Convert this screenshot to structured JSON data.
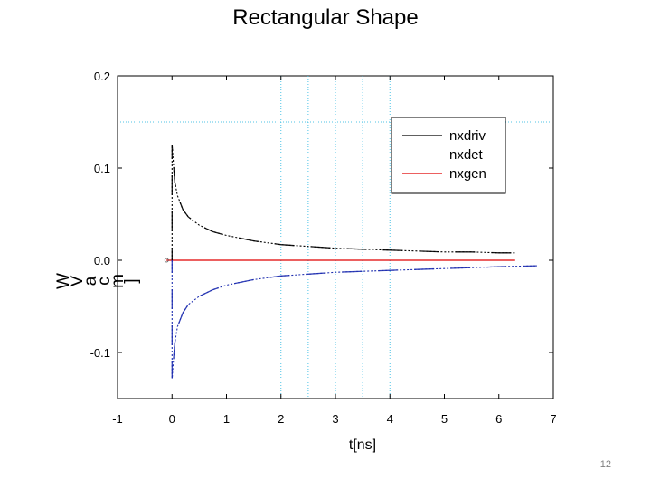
{
  "slide": {
    "title": "Rectangular Shape",
    "page_number": "12"
  },
  "chart_data": {
    "type": "line",
    "title": "",
    "xlabel": "t[ns]",
    "ylabel_chars": [
      "W",
      "V",
      "a",
      "c",
      "m",
      "]"
    ],
    "xlim": [
      -1,
      7
    ],
    "ylim": [
      -0.15,
      0.2
    ],
    "xticks": [
      -1,
      0,
      1,
      2,
      3,
      4,
      5,
      6,
      7
    ],
    "xtick_labels": [
      "-1",
      "0",
      "1",
      "2",
      "3",
      "4",
      "5",
      "6",
      "7"
    ],
    "yticks": [
      -0.1,
      0.0,
      0.1,
      0.2
    ],
    "ytick_labels": [
      "-0.1",
      "0.0",
      "0.1",
      "0.2"
    ],
    "grid": {
      "style": "dotted",
      "color": "#4fc3e6",
      "x_lines": [
        2.0,
        2.5,
        3.0,
        3.5,
        4.0
      ],
      "y_lines": [
        0.15
      ]
    },
    "legend": {
      "placement": "top-right",
      "entries": [
        {
          "label": "nxdriv",
          "color": "#000000",
          "style": "solid"
        },
        {
          "label": "nxdet",
          "color": "",
          "style": "none"
        },
        {
          "label": "nxgen",
          "color": "#e00000",
          "style": "solid"
        }
      ]
    },
    "series": [
      {
        "name": "nxdriv",
        "color": "#000000",
        "style": "dotted-dashed",
        "x": [
          0.0,
          0.0,
          0.05,
          0.1,
          0.2,
          0.3,
          0.5,
          0.75,
          1.0,
          1.5,
          2.0,
          2.5,
          3.0,
          3.5,
          4.0,
          4.5,
          5.0,
          5.5,
          6.0,
          6.3
        ],
        "y": [
          0.0,
          0.125,
          0.085,
          0.07,
          0.055,
          0.047,
          0.038,
          0.031,
          0.027,
          0.021,
          0.017,
          0.015,
          0.013,
          0.012,
          0.011,
          0.01,
          0.009,
          0.009,
          0.008,
          0.008
        ]
      },
      {
        "name": "nxdet",
        "color": "#1f2fb0",
        "style": "dotted-dashed",
        "x": [
          0.0,
          0.0,
          0.05,
          0.1,
          0.2,
          0.3,
          0.5,
          0.75,
          1.0,
          1.5,
          2.0,
          2.5,
          3.0,
          3.5,
          4.0,
          4.5,
          5.0,
          5.5,
          6.0,
          6.7
        ],
        "y": [
          0.0,
          -0.128,
          -0.09,
          -0.072,
          -0.057,
          -0.048,
          -0.039,
          -0.032,
          -0.027,
          -0.021,
          -0.017,
          -0.015,
          -0.013,
          -0.012,
          -0.011,
          -0.01,
          -0.009,
          -0.008,
          -0.007,
          -0.006
        ]
      },
      {
        "name": "nxgen",
        "color": "#e00000",
        "style": "solid",
        "x": [
          -0.1,
          6.3
        ],
        "y": [
          0.0,
          0.0
        ]
      }
    ]
  }
}
